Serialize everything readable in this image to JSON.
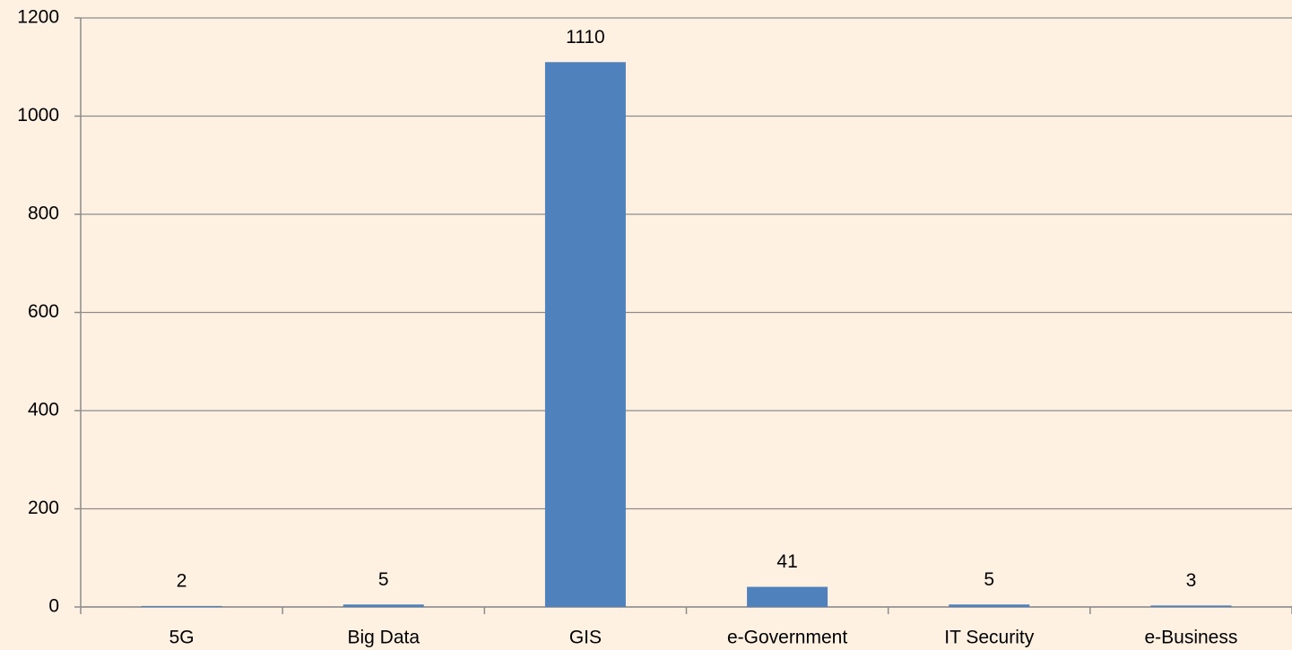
{
  "chart_data": {
    "type": "bar",
    "categories": [
      "5G",
      "Big Data",
      "GIS",
      "e-Government",
      "IT Security",
      "e-Business"
    ],
    "values": [
      2,
      5,
      1110,
      41,
      5,
      3
    ],
    "color": "#4f81bd",
    "ylim": [
      0,
      1200
    ],
    "yticks": [
      0,
      200,
      400,
      600,
      800,
      1000,
      1200
    ],
    "grid": true
  }
}
